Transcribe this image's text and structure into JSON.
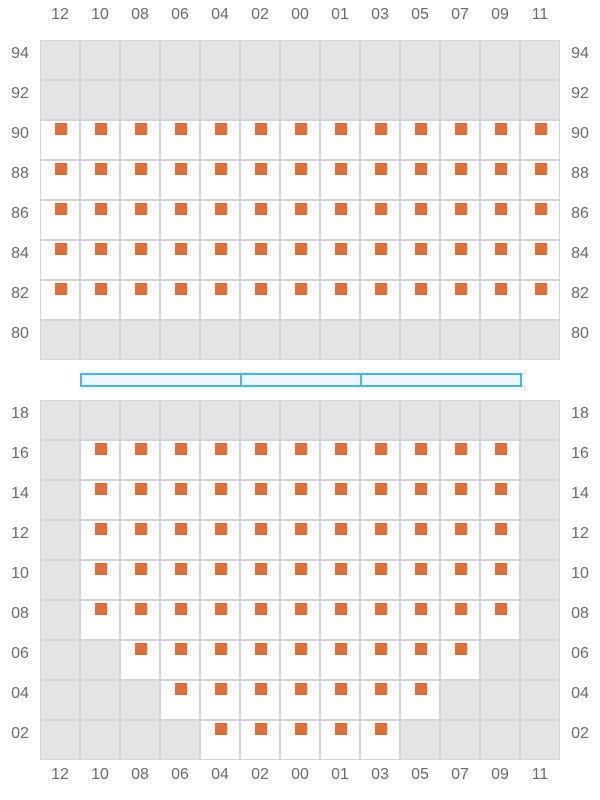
{
  "colors": {
    "seat": "#e36b36",
    "open_cell": "#ffffff",
    "blocked_cell": "#e4e4e7",
    "grid": "#d4d4d8",
    "divider": "#3bbcf0"
  },
  "columns": [
    "12",
    "10",
    "08",
    "06",
    "04",
    "02",
    "00",
    "01",
    "03",
    "05",
    "07",
    "09",
    "11"
  ],
  "top_section": {
    "rows": [
      {
        "label": "94",
        "seats": []
      },
      {
        "label": "92",
        "seats": []
      },
      {
        "label": "90",
        "seats": [
          "12",
          "10",
          "08",
          "06",
          "04",
          "02",
          "00",
          "01",
          "03",
          "05",
          "07",
          "09",
          "11"
        ]
      },
      {
        "label": "88",
        "seats": [
          "12",
          "10",
          "08",
          "06",
          "04",
          "02",
          "00",
          "01",
          "03",
          "05",
          "07",
          "09",
          "11"
        ]
      },
      {
        "label": "86",
        "seats": [
          "12",
          "10",
          "08",
          "06",
          "04",
          "02",
          "00",
          "01",
          "03",
          "05",
          "07",
          "09",
          "11"
        ]
      },
      {
        "label": "84",
        "seats": [
          "12",
          "10",
          "08",
          "06",
          "04",
          "02",
          "00",
          "01",
          "03",
          "05",
          "07",
          "09",
          "11"
        ]
      },
      {
        "label": "82",
        "seats": [
          "12",
          "10",
          "08",
          "06",
          "04",
          "02",
          "00",
          "01",
          "03",
          "05",
          "07",
          "09",
          "11"
        ]
      },
      {
        "label": "80",
        "seats": []
      }
    ]
  },
  "bottom_section": {
    "rows": [
      {
        "label": "18",
        "seats": []
      },
      {
        "label": "16",
        "seats": [
          "10",
          "08",
          "06",
          "04",
          "02",
          "00",
          "01",
          "03",
          "05",
          "07",
          "09"
        ]
      },
      {
        "label": "14",
        "seats": [
          "10",
          "08",
          "06",
          "04",
          "02",
          "00",
          "01",
          "03",
          "05",
          "07",
          "09"
        ]
      },
      {
        "label": "12",
        "seats": [
          "10",
          "08",
          "06",
          "04",
          "02",
          "00",
          "01",
          "03",
          "05",
          "07",
          "09"
        ]
      },
      {
        "label": "10",
        "seats": [
          "10",
          "08",
          "06",
          "04",
          "02",
          "00",
          "01",
          "03",
          "05",
          "07",
          "09"
        ]
      },
      {
        "label": "08",
        "seats": [
          "10",
          "08",
          "06",
          "04",
          "02",
          "00",
          "01",
          "03",
          "05",
          "07",
          "09"
        ]
      },
      {
        "label": "06",
        "seats": [
          "08",
          "06",
          "04",
          "02",
          "00",
          "01",
          "03",
          "05",
          "07"
        ]
      },
      {
        "label": "04",
        "seats": [
          "06",
          "04",
          "02",
          "00",
          "01",
          "03",
          "05"
        ]
      },
      {
        "label": "02",
        "seats": [
          "04",
          "02",
          "00",
          "01",
          "03"
        ]
      }
    ]
  },
  "divider_segments": 3
}
